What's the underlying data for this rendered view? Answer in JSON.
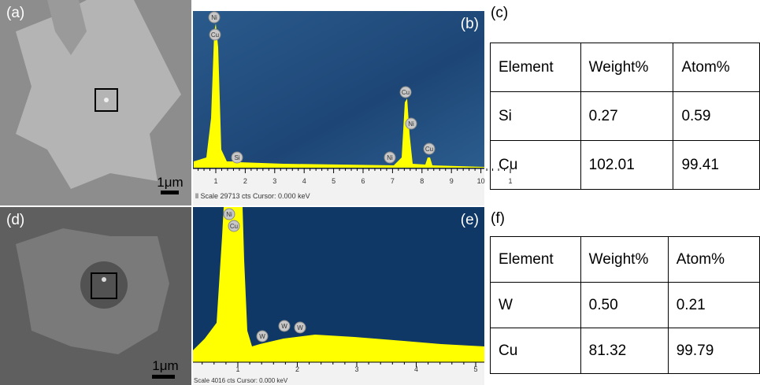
{
  "panels": {
    "a": {
      "label": "(a)",
      "scale_bar": "1μm"
    },
    "b": {
      "label": "(b)",
      "peaks": [
        "Ni",
        "Cu",
        "Si",
        "Cu",
        "Ni",
        "Ni",
        "Cu"
      ],
      "axis_ticks": [
        "1",
        "2",
        "3",
        "4",
        "5",
        "6",
        "7",
        "8",
        "9",
        "10",
        "1"
      ],
      "footer": "ll Scale 29713 cts  Cursor: 0.000 keV"
    },
    "c": {
      "label": "(c)",
      "table": {
        "header": [
          "Element",
          "Weight%",
          "Atom%"
        ],
        "rows": [
          [
            "Si",
            "0.27",
            "0.59"
          ],
          [
            "Cu",
            "102.01",
            "99.41"
          ]
        ]
      }
    },
    "d": {
      "label": "(d)",
      "scale_bar": "1μm"
    },
    "e": {
      "label": "(e)",
      "peaks": [
        "Ni",
        "Cu",
        "W",
        "W",
        "W"
      ],
      "axis_ticks": [
        "1",
        "2",
        "3",
        "4",
        "5"
      ],
      "footer": "Scale 4016 cts  Cursor: 0.000 keV"
    },
    "f": {
      "label": "(f)",
      "table": {
        "header": [
          "Element",
          "Weight%",
          "Atom%"
        ],
        "rows": [
          [
            "W",
            "0.50",
            "0.21"
          ],
          [
            "Cu",
            "81.32",
            "99.79"
          ]
        ]
      }
    }
  }
}
